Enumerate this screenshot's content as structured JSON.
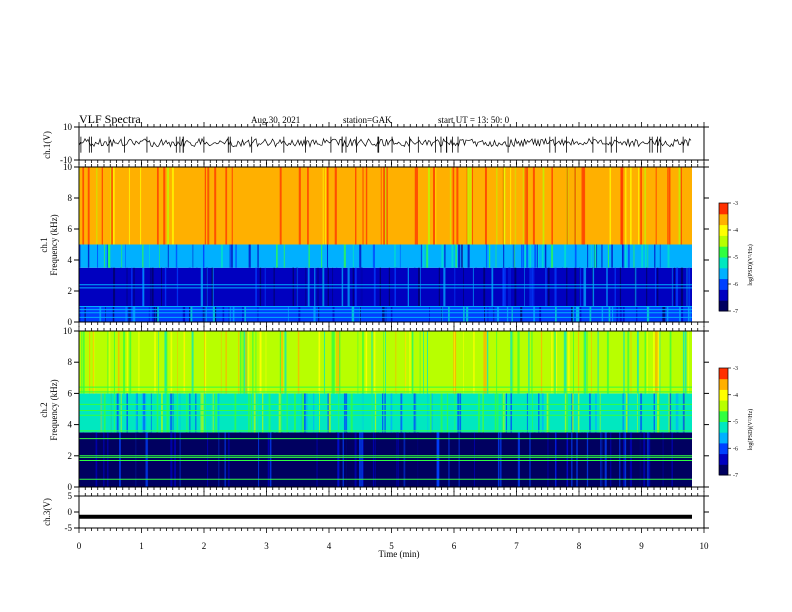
{
  "header": {
    "title": "VLF Spectra",
    "date": "Aug.30, 2021",
    "station": "station=GAK",
    "start": "start  UT  =   13: 50: 0"
  },
  "colors": {
    "colormap": [
      "#000060",
      "#0000c0",
      "#0040ff",
      "#00b0ff",
      "#00e8c0",
      "#30ff40",
      "#b8ff00",
      "#ffff00",
      "#ffb000",
      "#ff3000"
    ],
    "trace": "#000000"
  },
  "chart_data": [
    {
      "type": "line",
      "title": "ch.1(V)",
      "ylabel": "ch.1(V)",
      "ylim": [
        -10,
        10
      ],
      "yticks": [
        "10",
        "-10"
      ],
      "xlim": [
        0,
        10
      ],
      "trace_level": 0.5
    },
    {
      "type": "heatmap",
      "ylabel_line1": "ch.1",
      "ylabel_line2": "Frequency  (kHz)",
      "ylim": [
        0,
        10
      ],
      "yticks": [
        "0",
        "2",
        "4",
        "6",
        "8",
        "10"
      ],
      "xlim": [
        0,
        10
      ],
      "bands": [
        {
          "from": 0,
          "to": 1,
          "level": 2
        },
        {
          "from": 1,
          "to": 3.5,
          "level": 1
        },
        {
          "from": 3.5,
          "to": 5,
          "level": 3
        },
        {
          "from": 5,
          "to": 10,
          "level": 8
        }
      ],
      "lines_khz": [
        0.3,
        0.6,
        0.8,
        1.0,
        2.2,
        2.4
      ],
      "colorbar": {
        "label": "log(PSD)(V²/Hz)",
        "ticks": [
          "-3",
          "-4",
          "-5",
          "-6",
          "-7"
        ],
        "range": [
          -7,
          -3
        ]
      }
    },
    {
      "type": "heatmap",
      "ylabel_line1": "ch.2",
      "ylabel_line2": "Frequency  (kHz)",
      "ylim": [
        0,
        10
      ],
      "yticks": [
        "0",
        "2",
        "4",
        "6",
        "8",
        "10"
      ],
      "xlim": [
        0,
        10
      ],
      "bands": [
        {
          "from": 0,
          "to": 3.5,
          "level": 0
        },
        {
          "from": 3.5,
          "to": 6,
          "level": 4
        },
        {
          "from": 6,
          "to": 10,
          "level": 6
        }
      ],
      "lines_khz": [
        0.5,
        1.7,
        1.9,
        2.0,
        3.1,
        3.6,
        4.6,
        4.9,
        5.3,
        6.1,
        6.4
      ],
      "colorbar": {
        "label": "log(PSD)(V²/Hz)",
        "ticks": [
          "-3",
          "-4",
          "-5",
          "-6",
          "-7"
        ],
        "range": [
          -7,
          -3
        ]
      }
    },
    {
      "type": "line",
      "ylabel": "ch.3(V)",
      "ylim": [
        -5,
        5
      ],
      "yticks": [
        "5",
        "0",
        "-5"
      ],
      "xlim": [
        0,
        10
      ],
      "xticks": [
        "0",
        "1",
        "2",
        "3",
        "4",
        "5",
        "6",
        "7",
        "8",
        "9",
        "10"
      ],
      "xlabel": "Time  (min)",
      "trace_level": -1.5
    }
  ]
}
